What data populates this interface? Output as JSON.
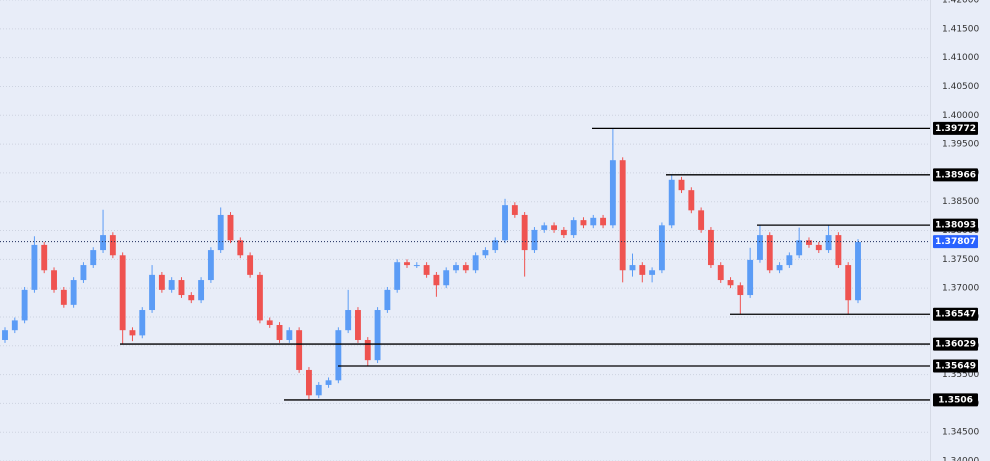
{
  "chart_data": {
    "type": "candlestick",
    "open": [
      1.361,
      1.3627,
      1.3644,
      1.3697,
      1.3775,
      1.3731,
      1.3697,
      1.3671,
      1.3714,
      1.374,
      1.3766,
      1.3792,
      1.3757,
      1.3627,
      1.3618,
      1.3662,
      1.3723,
      1.3697,
      1.3714,
      1.3688,
      1.3679,
      1.3714,
      1.3766,
      1.3827,
      1.3783,
      1.3757,
      1.3723,
      1.3644,
      1.3636,
      1.361,
      1.3627,
      1.3558,
      1.3514,
      1.3532,
      1.354,
      1.3627,
      1.3662,
      1.361,
      1.3575,
      1.3662,
      1.3697,
      1.3745,
      1.374,
      1.374,
      1.3723,
      1.3705,
      1.3731,
      1.374,
      1.3731,
      1.3757,
      1.3766,
      1.3783,
      1.3844,
      1.3827,
      1.3766,
      1.3801,
      1.3809,
      1.3801,
      1.3792,
      1.3818,
      1.3809,
      1.3822,
      1.3809,
      1.3922,
      1.3731,
      1.374,
      1.3723,
      1.3731,
      1.3809,
      1.3888,
      1.387,
      1.3835,
      1.3801,
      1.374,
      1.3714,
      1.3705,
      1.3688,
      1.3749,
      1.3792,
      1.3731,
      1.374,
      1.3757,
      1.3783,
      1.3775,
      1.3766,
      1.3792,
      1.374,
      1.3679
    ],
    "high": [
      1.3632,
      1.3649,
      1.3702,
      1.379,
      1.378,
      1.3736,
      1.3702,
      1.3719,
      1.3745,
      1.3771,
      1.3836,
      1.3797,
      1.3762,
      1.3632,
      1.3667,
      1.374,
      1.3728,
      1.3719,
      1.3719,
      1.3693,
      1.3719,
      1.3771,
      1.384,
      1.3832,
      1.3788,
      1.3762,
      1.3728,
      1.3649,
      1.3641,
      1.3632,
      1.3632,
      1.3563,
      1.3537,
      1.3545,
      1.3632,
      1.3697,
      1.3667,
      1.3615,
      1.3667,
      1.3702,
      1.375,
      1.375,
      1.3745,
      1.3745,
      1.3728,
      1.3736,
      1.3745,
      1.3745,
      1.3762,
      1.3771,
      1.3788,
      1.3855,
      1.3849,
      1.3832,
      1.3806,
      1.3814,
      1.3814,
      1.3806,
      1.3823,
      1.3823,
      1.3827,
      1.3827,
      1.3977,
      1.3927,
      1.376,
      1.3745,
      1.3736,
      1.3814,
      1.3897,
      1.3893,
      1.3875,
      1.384,
      1.3806,
      1.3745,
      1.3719,
      1.371,
      1.377,
      1.3809,
      1.3797,
      1.3745,
      1.3762,
      1.3805,
      1.3788,
      1.378,
      1.3809,
      1.3797,
      1.3745,
      1.3785
    ],
    "low": [
      1.3605,
      1.3622,
      1.3639,
      1.3692,
      1.3726,
      1.3692,
      1.3666,
      1.3666,
      1.3709,
      1.3735,
      1.3761,
      1.3752,
      1.3603,
      1.3608,
      1.3613,
      1.3657,
      1.3692,
      1.3692,
      1.3683,
      1.3674,
      1.3674,
      1.3709,
      1.3761,
      1.3778,
      1.3752,
      1.3718,
      1.3639,
      1.3631,
      1.3605,
      1.3605,
      1.3553,
      1.3506,
      1.3509,
      1.3527,
      1.3535,
      1.3622,
      1.3605,
      1.3565,
      1.357,
      1.3657,
      1.3692,
      1.3735,
      1.3735,
      1.3718,
      1.3685,
      1.37,
      1.3726,
      1.3726,
      1.3726,
      1.3752,
      1.3761,
      1.3778,
      1.3822,
      1.372,
      1.3761,
      1.3796,
      1.3796,
      1.3787,
      1.3787,
      1.3804,
      1.3804,
      1.3804,
      1.3804,
      1.371,
      1.372,
      1.371,
      1.371,
      1.3726,
      1.3804,
      1.3865,
      1.383,
      1.3796,
      1.3735,
      1.3709,
      1.37,
      1.3655,
      1.3683,
      1.3744,
      1.3726,
      1.3726,
      1.3735,
      1.3752,
      1.377,
      1.3761,
      1.3761,
      1.3735,
      1.3655,
      1.3674
    ],
    "close": [
      1.3627,
      1.3644,
      1.3697,
      1.3775,
      1.3731,
      1.3697,
      1.3671,
      1.3714,
      1.374,
      1.3766,
      1.3792,
      1.3757,
      1.3627,
      1.3618,
      1.3662,
      1.3723,
      1.3697,
      1.3714,
      1.3688,
      1.3679,
      1.3714,
      1.3766,
      1.3827,
      1.3783,
      1.3757,
      1.3723,
      1.3644,
      1.3636,
      1.361,
      1.3627,
      1.3558,
      1.3514,
      1.3532,
      1.354,
      1.3627,
      1.3662,
      1.361,
      1.3575,
      1.3662,
      1.3697,
      1.3745,
      1.374,
      1.374,
      1.3723,
      1.3705,
      1.3731,
      1.374,
      1.3731,
      1.3757,
      1.3766,
      1.3783,
      1.3844,
      1.3827,
      1.3766,
      1.3801,
      1.3809,
      1.3801,
      1.3792,
      1.3818,
      1.3809,
      1.3822,
      1.3809,
      1.3922,
      1.3731,
      1.374,
      1.3723,
      1.3731,
      1.3809,
      1.3888,
      1.387,
      1.3835,
      1.3801,
      1.374,
      1.3714,
      1.3705,
      1.3688,
      1.3749,
      1.3792,
      1.3731,
      1.374,
      1.3757,
      1.3783,
      1.3775,
      1.3766,
      1.3792,
      1.374,
      1.3679,
      1.378
    ],
    "up_color": "#5b9cf6",
    "down_color": "#ef5350",
    "ylim": [
      1.34,
      1.42
    ],
    "yticks": [
      {
        "value": 1.34,
        "label": "1.34000"
      },
      {
        "value": 1.345,
        "label": "1.34500"
      },
      {
        "value": 1.35,
        "label": "1.35000"
      },
      {
        "value": 1.355,
        "label": "1.35500"
      },
      {
        "value": 1.36,
        "label": "1.36000"
      },
      {
        "value": 1.365,
        "label": "1.36500"
      },
      {
        "value": 1.37,
        "label": "1.37000"
      },
      {
        "value": 1.375,
        "label": "1.37500"
      },
      {
        "value": 1.38,
        "label": "1.38000"
      },
      {
        "value": 1.385,
        "label": "1.38500"
      },
      {
        "value": 1.39,
        "label": "1.39000"
      },
      {
        "value": 1.395,
        "label": "1.39500"
      },
      {
        "value": 1.4,
        "label": "1.40000"
      },
      {
        "value": 1.405,
        "label": "1.40500"
      },
      {
        "value": 1.41,
        "label": "1.41000"
      },
      {
        "value": 1.415,
        "label": "1.41500"
      },
      {
        "value": 1.42,
        "label": "1.42000"
      }
    ],
    "grid": true,
    "levels": [
      1.39772,
      1.38966,
      1.38093,
      1.36547,
      1.36029,
      1.35649,
      1.3506
    ],
    "current_price": 1.37807,
    "current_color": "#2962ff"
  }
}
